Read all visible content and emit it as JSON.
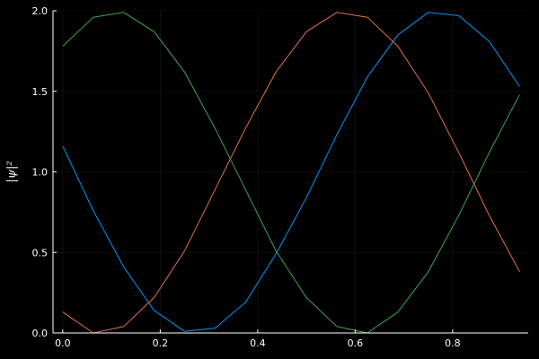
{
  "chart_data": {
    "type": "line",
    "title": "",
    "xlabel": "",
    "ylabel": "|ψ|²",
    "xlim": [
      -0.02,
      0.955
    ],
    "ylim": [
      0,
      2
    ],
    "xticks": [
      0.0,
      0.2,
      0.4,
      0.6,
      0.8
    ],
    "xtick_labels": [
      "0.0",
      "0.2",
      "0.4",
      "0.6",
      "0.8"
    ],
    "yticks": [
      0.0,
      0.5,
      1.0,
      1.5,
      2.0
    ],
    "ytick_labels": [
      "0.0",
      "0.5",
      "1.0",
      "1.5",
      "2.0"
    ],
    "grid": true,
    "legend": "none",
    "x": [
      0,
      0.0625,
      0.125,
      0.1875,
      0.25,
      0.3125,
      0.375,
      0.4375,
      0.5,
      0.5625,
      0.625,
      0.6875,
      0.75,
      0.8125,
      0.875,
      0.9375
    ],
    "series": [
      {
        "color": "#009AFA",
        "values": [
          1.16,
          0.76,
          0.41,
          0.14,
          0.01,
          0.03,
          0.19,
          0.49,
          0.84,
          1.23,
          1.59,
          1.85,
          1.99,
          1.97,
          1.81,
          1.53
        ]
      },
      {
        "color": "#E36F47",
        "values": [
          0.13,
          0.0,
          0.04,
          0.22,
          0.51,
          0.89,
          1.27,
          1.62,
          1.87,
          1.99,
          1.96,
          1.78,
          1.49,
          1.12,
          0.73,
          0.38
        ]
      },
      {
        "color": "#3EA44E",
        "values": [
          1.78,
          1.96,
          1.99,
          1.87,
          1.62,
          1.27,
          0.89,
          0.51,
          0.22,
          0.04,
          0.0,
          0.13,
          0.38,
          0.73,
          1.12,
          1.48
        ]
      }
    ]
  }
}
